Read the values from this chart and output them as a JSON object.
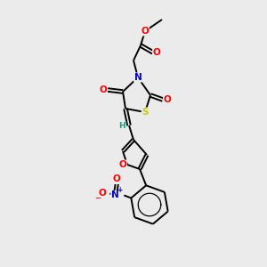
{
  "background_color": "#ebebeb",
  "bond_color": "#000000",
  "atom_colors": {
    "O": "#ff0000",
    "N": "#0000cc",
    "S": "#cccc00",
    "H": "#00aa88",
    "C": "#000000"
  },
  "figsize": [
    3.0,
    3.0
  ],
  "dpi": 100,
  "lw": 1.4,
  "fontsize": 7.5
}
